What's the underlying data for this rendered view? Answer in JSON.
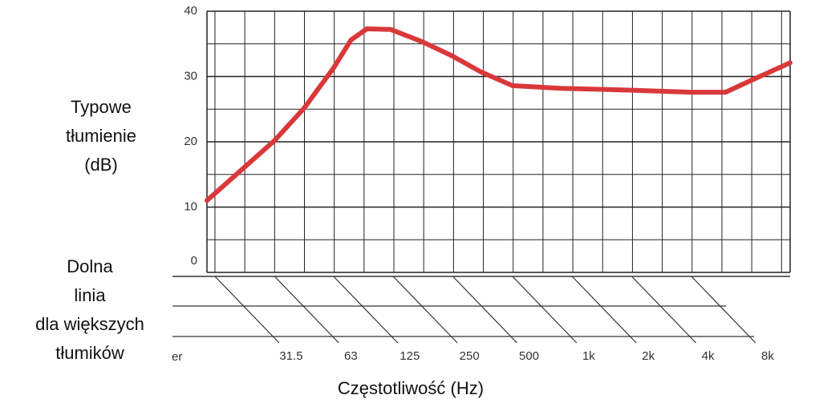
{
  "chart_data": {
    "type": "line",
    "y_label_lines": [
      "Typowe",
      "tłumienie",
      "(dB)"
    ],
    "note_lines": [
      "Dolna",
      "linia",
      "dla większych",
      "tłumików"
    ],
    "x_label": "Częstotliwość (Hz)",
    "fragment": "er",
    "x": [
      28.7,
      42.5,
      63,
      89,
      125,
      153,
      184,
      243,
      352,
      500,
      693,
      1000,
      1750,
      4000,
      8000,
      11900,
      16000,
      25200
    ],
    "values": [
      11.0,
      15.6,
      20.2,
      25.2,
      31.3,
      35.6,
      37.3,
      37.2,
      35.3,
      33.1,
      30.7,
      28.6,
      28.2,
      27.9,
      27.6,
      27.6,
      29.4,
      32.1
    ],
    "color": "#d9383a",
    "xscale": "log",
    "xlim": [
      28.7,
      25200
    ],
    "xticks": [
      31.5,
      63,
      125,
      250,
      500,
      {
        "value": 1000,
        "label": "1k"
      },
      {
        "value": 2000,
        "label": "2k"
      },
      {
        "value": 4000,
        "label": "4k"
      },
      {
        "value": 8000,
        "label": "8k"
      }
    ],
    "ylim": [
      0,
      40
    ],
    "yticks": [
      0,
      10,
      20,
      30,
      40
    ],
    "grid": true
  }
}
